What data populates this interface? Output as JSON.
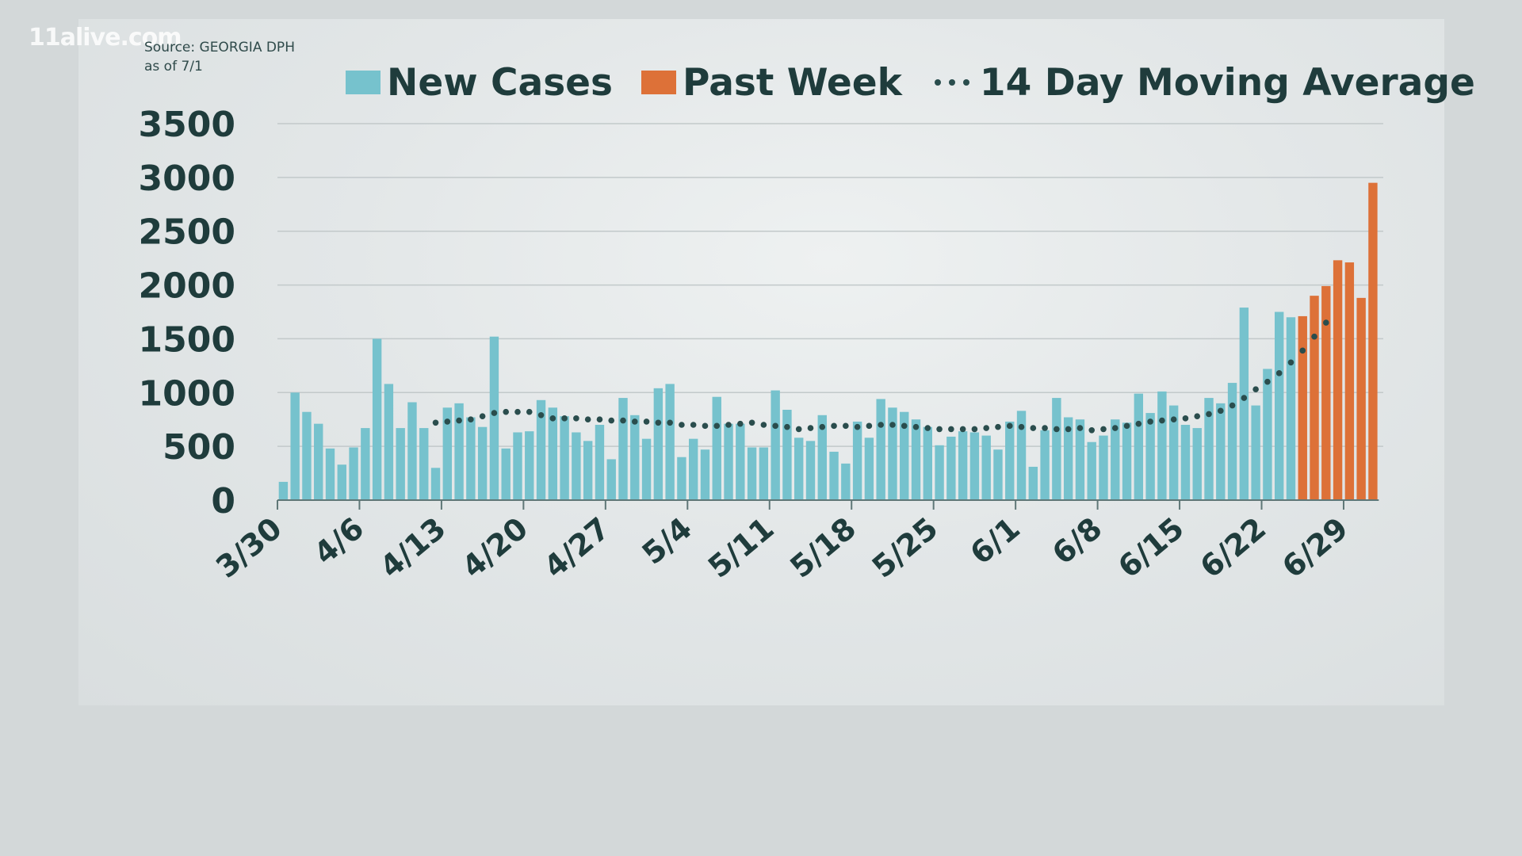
{
  "watermark": "11alive.com",
  "source_line1": "Source: GEORGIA DPH",
  "source_line2": "as of 7/1",
  "colors": {
    "new_cases": "#76c2cd",
    "past_week": "#dd7138",
    "moving_avg": "#2a4d4d",
    "grid": "#c2c9ca",
    "axis": "#5f7777"
  },
  "chart_data": {
    "type": "bar",
    "title": "",
    "xlabel": "",
    "ylabel": "",
    "ylim": [
      0,
      3500
    ],
    "yticks": [
      0,
      500,
      1000,
      1500,
      2000,
      2500,
      3000,
      3500
    ],
    "ytick_labels": [
      "0",
      "500",
      "1000",
      "1500",
      "2000",
      "2500",
      "3000",
      "3500"
    ],
    "xtick_labels": [
      "3/30",
      "4/6",
      "4/13",
      "4/20",
      "4/27",
      "5/4",
      "5/11",
      "5/18",
      "5/25",
      "6/1",
      "6/8",
      "6/15",
      "6/22",
      "6/29"
    ],
    "start_date": "3/30",
    "days": 94,
    "series": [
      {
        "name": "New Cases",
        "type": "bar",
        "values": [
          170,
          1000,
          820,
          710,
          480,
          330,
          490,
          670,
          1500,
          1080,
          670,
          910,
          670,
          300,
          860,
          900,
          770,
          680,
          1520,
          480,
          630,
          640,
          930,
          860,
          780,
          630,
          550,
          700,
          380,
          950,
          790,
          570,
          1040,
          1080,
          400,
          570,
          470,
          960,
          710,
          710,
          490,
          490,
          1020,
          840,
          580,
          550,
          790,
          450,
          340,
          730,
          580,
          940,
          860,
          820,
          750,
          680,
          510,
          590,
          640,
          630,
          600,
          470,
          730,
          830,
          310,
          650,
          950,
          770,
          750,
          540,
          600,
          750,
          720,
          990,
          810,
          1010,
          880,
          700,
          670,
          950,
          900,
          1090,
          1790,
          880,
          1220,
          1750,
          1700
        ]
      },
      {
        "name": "Past Week",
        "type": "bar",
        "values": [
          1710,
          1900,
          1990,
          2230,
          2210,
          1880,
          2950
        ]
      },
      {
        "name": "14 Day Moving Average",
        "type": "line",
        "start_index": 13,
        "values": [
          720,
          730,
          740,
          750,
          780,
          810,
          820,
          820,
          820,
          790,
          760,
          760,
          760,
          750,
          750,
          740,
          740,
          730,
          730,
          720,
          720,
          700,
          700,
          690,
          690,
          700,
          710,
          720,
          700,
          690,
          680,
          660,
          670,
          680,
          690,
          690,
          680,
          690,
          700,
          700,
          690,
          680,
          670,
          660,
          660,
          660,
          660,
          670,
          680,
          690,
          680,
          670,
          670,
          660,
          660,
          670,
          650,
          660,
          670,
          690,
          710,
          730,
          740,
          750,
          760,
          780,
          800,
          830,
          880,
          950,
          1030,
          1100,
          1180,
          1280,
          1390,
          1520,
          1650
        ]
      }
    ]
  }
}
